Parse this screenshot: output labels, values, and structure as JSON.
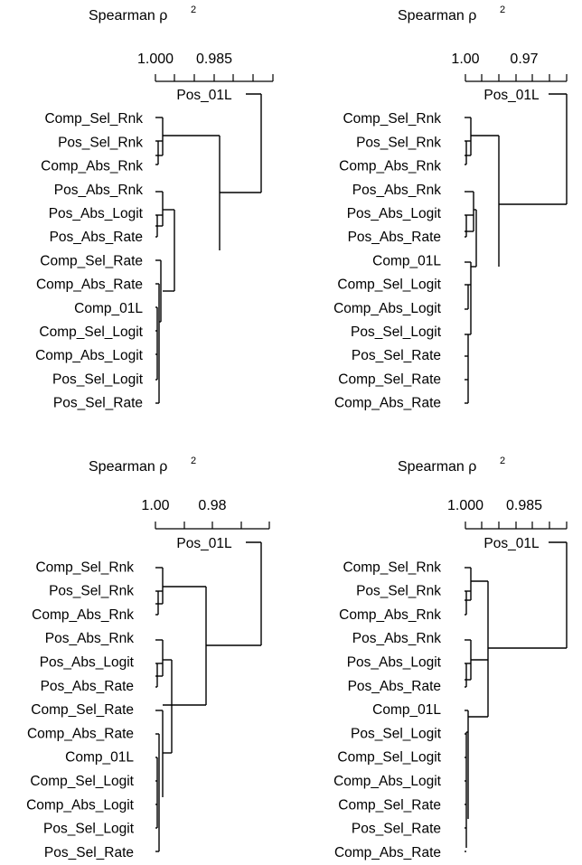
{
  "colors": {
    "ink": "#000000",
    "background": "#ffffff"
  },
  "chart_data": [
    {
      "type": "dendrogram",
      "title": "Spearman ρ",
      "title_sup": "2",
      "tick_labels": [
        "1.000",
        "0.985"
      ],
      "leaves": [
        "Pos_01L",
        "Comp_Sel_Rnk",
        "Pos_Sel_Rnk",
        "Comp_Abs_Rnk",
        "Pos_Abs_Rnk",
        "Pos_Abs_Logit",
        "Pos_Abs_Rate",
        "Comp_Sel_Rate",
        "Comp_Abs_Rate",
        "Comp_01L",
        "Comp_Sel_Logit",
        "Comp_Abs_Logit",
        "Pos_Sel_Logit",
        "Pos_Sel_Rate"
      ]
    },
    {
      "type": "dendrogram",
      "title": "Spearman ρ",
      "title_sup": "2",
      "tick_labels": [
        "1.00",
        "0.97"
      ],
      "leaves": [
        "Pos_01L",
        "Comp_Sel_Rnk",
        "Pos_Sel_Rnk",
        "Comp_Abs_Rnk",
        "Pos_Abs_Rnk",
        "Pos_Abs_Logit",
        "Pos_Abs_Rate",
        "Comp_01L",
        "Comp_Sel_Logit",
        "Comp_Abs_Logit",
        "Pos_Sel_Logit",
        "Pos_Sel_Rate",
        "Comp_Sel_Rate",
        "Comp_Abs_Rate"
      ]
    },
    {
      "type": "dendrogram",
      "title": "Spearman ρ",
      "title_sup": "2",
      "tick_labels": [
        "1.00",
        "0.98"
      ],
      "leaves": [
        "Pos_01L",
        "Comp_Sel_Rnk",
        "Pos_Sel_Rnk",
        "Comp_Abs_Rnk",
        "Pos_Abs_Rnk",
        "Pos_Abs_Logit",
        "Pos_Abs_Rate",
        "Comp_Sel_Rate",
        "Comp_Abs_Rate",
        "Comp_01L",
        "Comp_Sel_Logit",
        "Comp_Abs_Logit",
        "Pos_Sel_Logit",
        "Pos_Sel_Rate"
      ]
    },
    {
      "type": "dendrogram",
      "title": "Spearman ρ",
      "title_sup": "2",
      "tick_labels": [
        "1.000",
        "0.985"
      ],
      "leaves": [
        "Pos_01L",
        "Comp_Sel_Rnk",
        "Pos_Sel_Rnk",
        "Comp_Abs_Rnk",
        "Pos_Abs_Rnk",
        "Pos_Abs_Logit",
        "Pos_Abs_Rate",
        "Comp_01L",
        "Pos_Sel_Logit",
        "Comp_Sel_Logit",
        "Comp_Abs_Logit",
        "Comp_Sel_Rate",
        "Pos_Sel_Rate",
        "Comp_Abs_Rate"
      ]
    }
  ]
}
